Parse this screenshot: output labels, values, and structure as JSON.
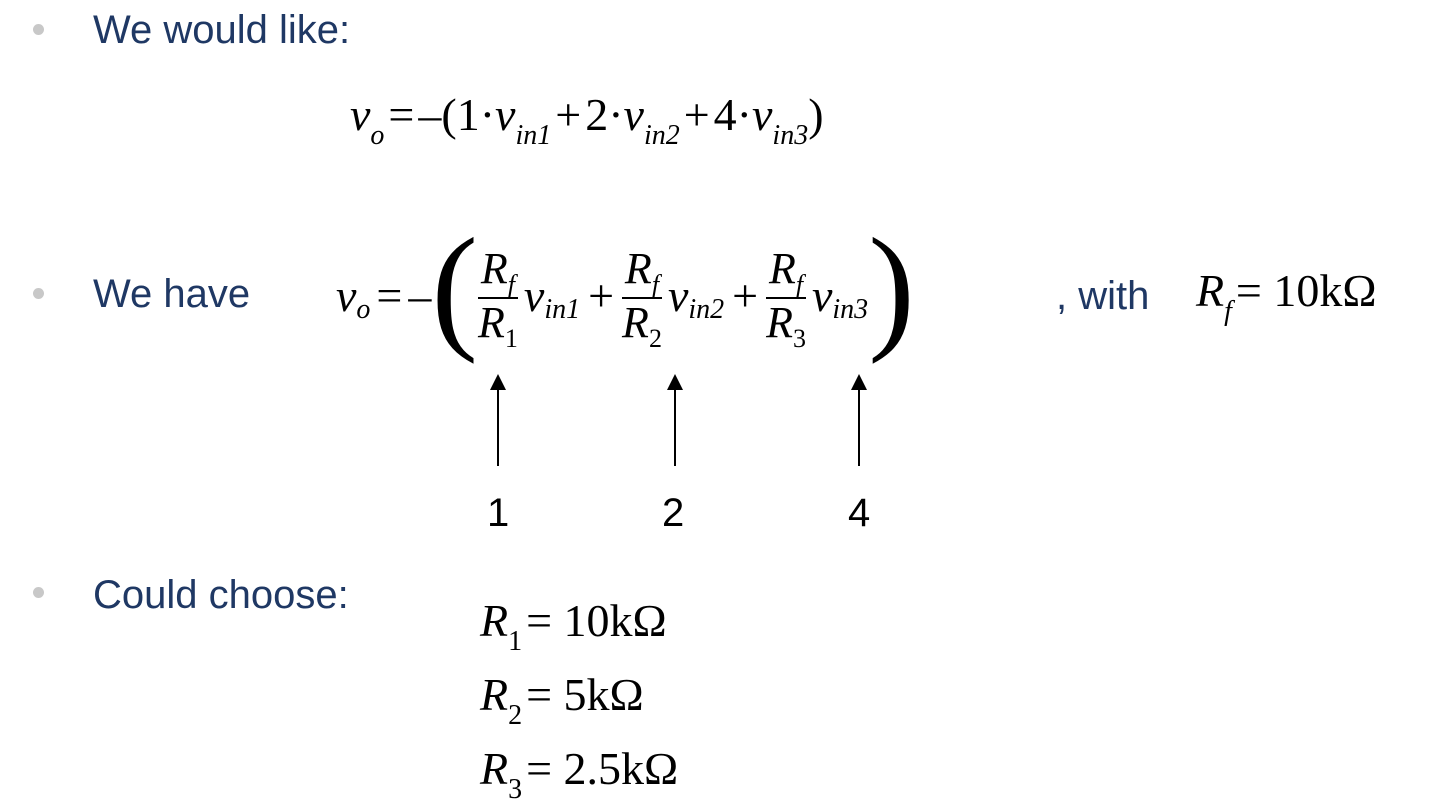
{
  "bullets": {
    "b1": "We would like:",
    "b2": "We have",
    "b2_with": ", with",
    "b3": "Could choose:"
  },
  "eq1": {
    "lhs": "v",
    "lhs_sub": "o",
    "eq": "=",
    "minus": "–(",
    "c1": "1",
    "dot": "·",
    "vin": "v",
    "in1": "in1",
    "plus": "+",
    "c2": "2",
    "in2": "in2",
    "c3": "4",
    "in3": "in3",
    "close": ")"
  },
  "eq2": {
    "rf": "R",
    "rf_sub": "f",
    "r1_sub": "1",
    "r2_sub": "2",
    "r3_sub": "3"
  },
  "rf_value": "= 10kΩ",
  "arrow_labels": [
    "1",
    "2",
    "4"
  ],
  "choices": [
    {
      "sub": "1",
      "value": "= 10kΩ"
    },
    {
      "sub": "2",
      "value": "= 5kΩ"
    },
    {
      "sub": "3",
      "value": "= 2.5kΩ"
    }
  ]
}
